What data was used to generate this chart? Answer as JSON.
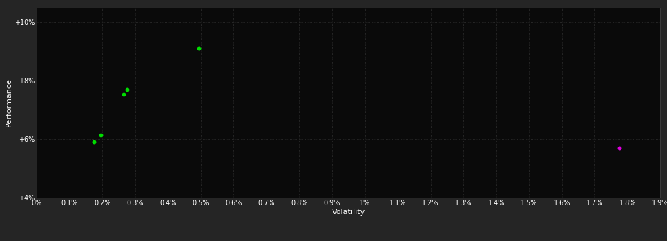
{
  "background_color": "#252525",
  "plot_bg_color": "#0a0a0a",
  "grid_color": "#333333",
  "text_color": "#ffffff",
  "xlabel": "Volatility",
  "ylabel": "Performance",
  "xlim": [
    0.0,
    0.019
  ],
  "ylim": [
    0.04,
    0.105
  ],
  "xtick_values": [
    0.0,
    0.001,
    0.002,
    0.003,
    0.004,
    0.005,
    0.006,
    0.007,
    0.008,
    0.009,
    0.01,
    0.011,
    0.012,
    0.013,
    0.014,
    0.015,
    0.016,
    0.017,
    0.018,
    0.019
  ],
  "xtick_labels": [
    "0%",
    "0.1%",
    "0.2%",
    "0.3%",
    "0.4%",
    "0.5%",
    "0.6%",
    "0.7%",
    "0.8%",
    "0.9%",
    "1%",
    "1.1%",
    "1.2%",
    "1.3%",
    "1.4%",
    "1.5%",
    "1.6%",
    "1.7%",
    "1.8%",
    "1.9%"
  ],
  "ytick_values": [
    0.04,
    0.06,
    0.08,
    0.1
  ],
  "ytick_labels": [
    "+4%",
    "+6%",
    "+8%",
    "+10%"
  ],
  "green_points": [
    [
      0.00195,
      0.0615
    ],
    [
      0.00175,
      0.059
    ],
    [
      0.00275,
      0.077
    ],
    [
      0.00265,
      0.0753
    ],
    [
      0.00495,
      0.091
    ]
  ],
  "magenta_points": [
    [
      0.01775,
      0.057
    ]
  ],
  "point_size": 18,
  "green_color": "#00dd00",
  "magenta_color": "#dd00dd"
}
